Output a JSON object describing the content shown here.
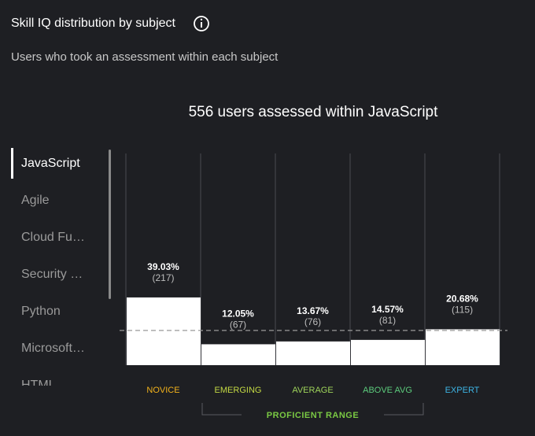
{
  "header": {
    "title": "Skill IQ distribution by subject",
    "subtitle": "Users who took an assessment within each subject"
  },
  "sidebar": {
    "items": [
      "JavaScript",
      "Agile",
      "Cloud Fu…",
      "Security …",
      "Python",
      "Microsoft…",
      "HTML"
    ],
    "active": 0
  },
  "chart_data": {
    "type": "bar",
    "title": "556 users assessed within JavaScript",
    "categories": [
      "NOVICE",
      "EMERGING",
      "AVERAGE",
      "ABOVE AVG",
      "EXPERT"
    ],
    "category_colors": [
      "#f2b21b",
      "#c3d843",
      "#9ed35a",
      "#5ccb7c",
      "#3db4e4"
    ],
    "values": [
      39.03,
      12.05,
      13.67,
      14.57,
      20.68
    ],
    "value_labels": [
      "39.03%",
      "12.05%",
      "13.67%",
      "14.57%",
      "20.68%"
    ],
    "count_labels": [
      "(217)",
      "(67)",
      "(76)",
      "(81)",
      "(115)"
    ],
    "color": "#ffffff",
    "ylim": [
      0,
      122
    ],
    "reference_line": 20,
    "range_label": "PROFICIENT RANGE",
    "range_color": "#7ac943"
  }
}
